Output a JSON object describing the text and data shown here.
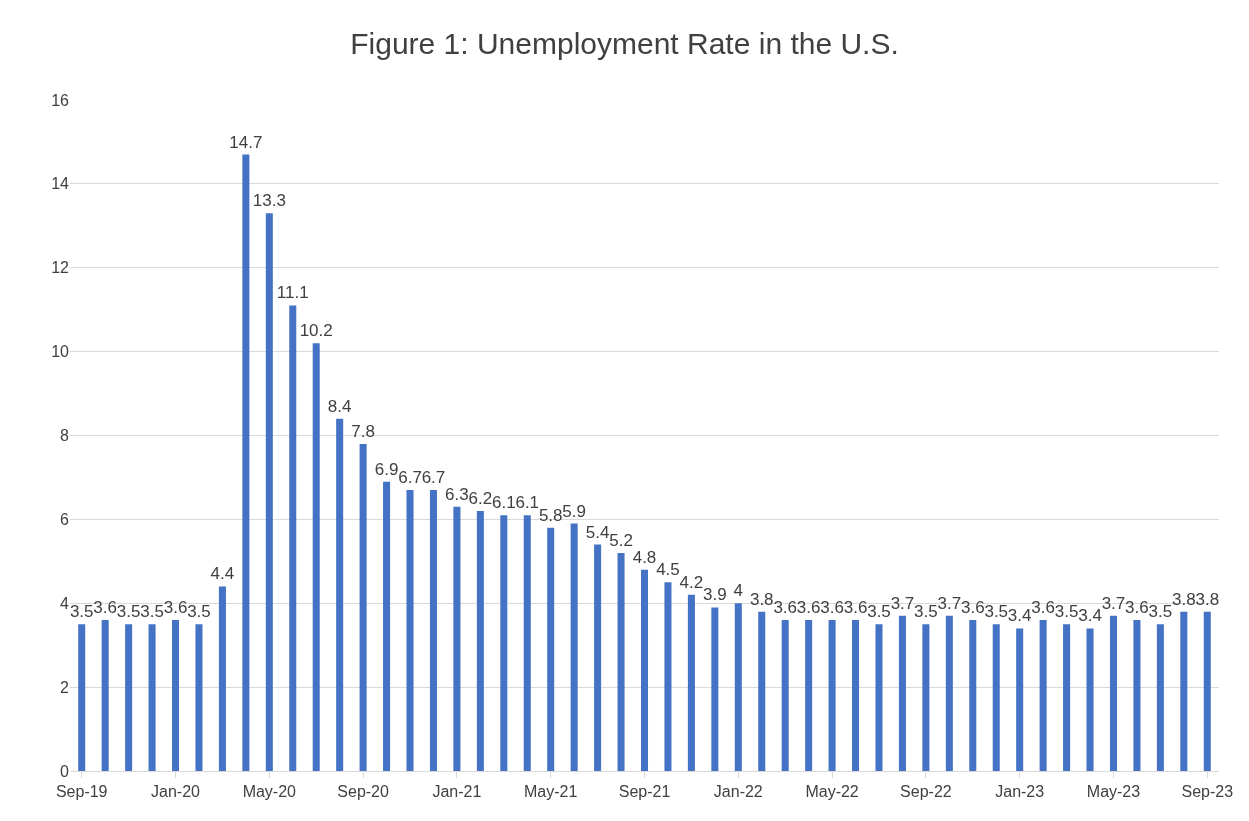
{
  "chart_data": {
    "type": "bar",
    "title": "Figure 1: Unemployment Rate in the U.S.",
    "categories": [
      "Sep-19",
      null,
      null,
      null,
      "Jan-20",
      null,
      null,
      null,
      "May-20",
      null,
      null,
      null,
      "Sep-20",
      null,
      null,
      null,
      "Jan-21",
      null,
      null,
      null,
      "May-21",
      null,
      null,
      null,
      "Sep-21",
      null,
      null,
      null,
      "Jan-22",
      null,
      null,
      null,
      "May-22",
      null,
      null,
      null,
      "Sep-22",
      null,
      null,
      null,
      "Jan-23",
      null,
      null,
      null,
      "May-23",
      null,
      null,
      null,
      "Sep-23"
    ],
    "values": [
      3.5,
      3.6,
      3.5,
      3.5,
      3.6,
      3.5,
      4.4,
      14.7,
      13.3,
      11.1,
      10.2,
      8.4,
      7.8,
      6.9,
      6.7,
      6.7,
      6.3,
      6.2,
      6.1,
      6.1,
      5.8,
      5.9,
      5.4,
      5.2,
      4.8,
      4.5,
      4.2,
      3.9,
      4,
      3.8,
      3.6,
      3.6,
      3.6,
      3.6,
      3.5,
      3.7,
      3.5,
      3.7,
      3.6,
      3.5,
      3.4,
      3.6,
      3.5,
      3.4,
      3.7,
      3.6,
      3.5,
      3.8,
      3.8
    ],
    "color": "#4472c4",
    "ylim": [
      0,
      16
    ],
    "yticks": [
      0,
      2,
      4,
      6,
      8,
      10,
      12,
      14,
      16
    ],
    "grid": "y",
    "data_labels": true
  }
}
